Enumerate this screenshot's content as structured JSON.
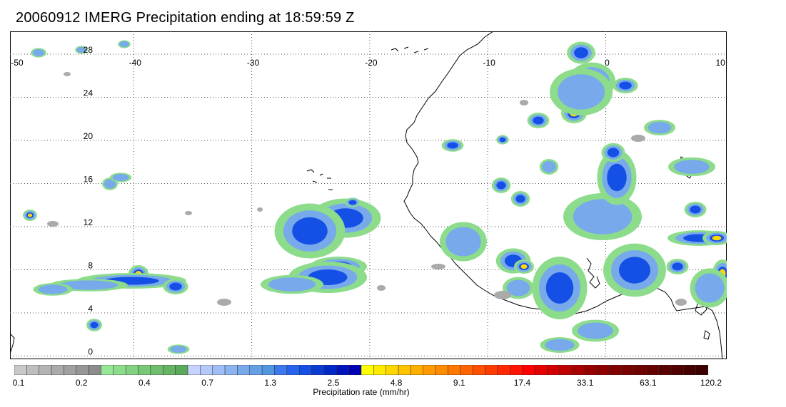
{
  "title": "20060912 IMERG Precipitation ending at 18:59:59 Z",
  "map": {
    "lon_ticks": [
      "-50",
      "-40",
      "-30",
      "-20",
      "-10",
      "0",
      "10"
    ],
    "lat_ticks": [
      "28",
      "24",
      "20",
      "16",
      "12",
      "8",
      "4",
      "0"
    ],
    "gridline_style": "dotted",
    "coastline_color": "#000000"
  },
  "colorbar": {
    "label": "Precipitation rate (mm/hr)",
    "tick_labels": [
      "0.1",
      "0.2",
      "0.4",
      "0.7",
      "1.3",
      "2.5",
      "4.8",
      "9.1",
      "17.4",
      "33.1",
      "63.1",
      "120.2"
    ],
    "colors": [
      "#c8c8c8",
      "#bebebe",
      "#b4b4b4",
      "#aaaaaa",
      "#a0a0a0",
      "#969696",
      "#8c8c8c",
      "#96e696",
      "#8cdc8c",
      "#82d282",
      "#78c878",
      "#6ebe6e",
      "#64b464",
      "#5aaa5a",
      "#c8d2ff",
      "#b4c8fa",
      "#a0bef5",
      "#8cb4f0",
      "#78aaeb",
      "#64a0e6",
      "#5096e1",
      "#3c78f0",
      "#2864eb",
      "#1450e6",
      "#0a3cd2",
      "#0028c8",
      "#0014be",
      "#0000b4",
      "#ffff00",
      "#ffeb00",
      "#ffd700",
      "#ffc300",
      "#ffaf00",
      "#ff9b00",
      "#ff8c00",
      "#ff7800",
      "#ff6400",
      "#ff5000",
      "#ff3c00",
      "#ff2800",
      "#ff1400",
      "#ff0000",
      "#e60000",
      "#d20000",
      "#be0000",
      "#aa0000",
      "#960000",
      "#8c0000",
      "#820000",
      "#780000",
      "#6e0000",
      "#640000",
      "#5a0000",
      "#500000",
      "#460000",
      "#3c0000"
    ]
  }
}
